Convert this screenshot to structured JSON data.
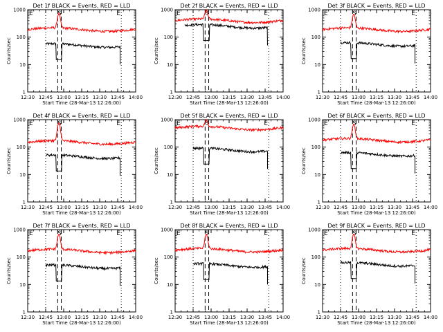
{
  "chart_data": [
    {
      "type": "line",
      "title": "Det 1f BLACK = Events, RED = LLD",
      "xlabel": "Start Time (28-Mar-13 12:26:00)",
      "ylabel": "Counts/sec",
      "xlim": [
        "12:30",
        "14:00"
      ],
      "ylim": [
        1,
        1000
      ],
      "yscale": "log",
      "x_tick_labels": [
        "12:30",
        "12:45",
        "13:00",
        "13:15",
        "13:30",
        "13:45",
        "14:00"
      ],
      "y_tick_labels": [
        "1",
        "10",
        "100",
        "1000"
      ],
      "markers": {
        "E_start": "12:45",
        "S_left": "12:55",
        "S_right": "12:58",
        "E_end": "13:48",
        "annotations": [
          "E",
          "S",
          "E"
        ]
      },
      "series": [
        {
          "name": "Events",
          "color": "#000000",
          "approx_level": 50,
          "start": "12:45",
          "end": "13:47"
        },
        {
          "name": "LLD",
          "color": "#ff0000",
          "approx_level": 190,
          "peak": "12:56",
          "peak_level": 700,
          "start": "12:30",
          "end": "14:00"
        }
      ]
    },
    {
      "type": "line",
      "title": "Det 2f BLACK = Events, RED = LLD",
      "xlabel": "Start Time (28-Mar-13 12:26:00)",
      "ylabel": "Counts/sec",
      "xlim": [
        "12:30",
        "14:00"
      ],
      "ylim": [
        1,
        1000
      ],
      "yscale": "log",
      "x_tick_labels": [
        "12:30",
        "12:45",
        "13:00",
        "13:15",
        "13:30",
        "13:45",
        "14:00"
      ],
      "y_tick_labels": [
        "1",
        "10",
        "100",
        "1000"
      ],
      "markers": {
        "E_start": "12:45",
        "S_left": "12:55",
        "S_right": "12:58",
        "E_end": "13:48",
        "annotations": [
          "E",
          "S",
          "E"
        ]
      },
      "series": [
        {
          "name": "Events",
          "color": "#000000",
          "approx_level": 250,
          "start": "12:38",
          "end": "13:47"
        },
        {
          "name": "LLD",
          "color": "#ff0000",
          "approx_level": 400,
          "peak": "12:56",
          "peak_level": 900,
          "start": "12:30",
          "end": "14:00"
        }
      ]
    },
    {
      "type": "line",
      "title": "Det 3f BLACK = Events, RED = LLD",
      "xlabel": "Start Time (28-Mar-13 12:26:00)",
      "ylabel": "Counts/sec",
      "xlim": [
        "12:30",
        "14:00"
      ],
      "ylim": [
        1,
        1000
      ],
      "yscale": "log",
      "x_tick_labels": [
        "12:30",
        "12:45",
        "13:00",
        "13:15",
        "13:30",
        "13:45",
        "14:00"
      ],
      "y_tick_labels": [
        "1",
        "10",
        "100",
        "1000"
      ],
      "markers": {
        "E_start": "12:45",
        "S_left": "12:55",
        "S_right": "12:58",
        "E_end": "13:48",
        "annotations": [
          "E",
          "S",
          "E"
        ]
      },
      "series": [
        {
          "name": "Events",
          "color": "#000000",
          "approx_level": 55,
          "start": "12:45",
          "end": "13:47"
        },
        {
          "name": "LLD",
          "color": "#ff0000",
          "approx_level": 190,
          "peak": "12:56",
          "peak_level": 650,
          "start": "12:30",
          "end": "14:00"
        }
      ]
    },
    {
      "type": "line",
      "title": "Det 4f BLACK = Events, RED = LLD",
      "xlabel": "Start Time (28-Mar-13 12:26:00)",
      "ylabel": "Counts/sec",
      "xlim": [
        "12:30",
        "14:00"
      ],
      "ylim": [
        1,
        1000
      ],
      "yscale": "log",
      "x_tick_labels": [
        "12:30",
        "12:45",
        "13:00",
        "13:15",
        "13:30",
        "13:45",
        "14:00"
      ],
      "y_tick_labels": [
        "1",
        "10",
        "100",
        "1000"
      ],
      "markers": {
        "E_start": "12:45",
        "S_left": "12:55",
        "S_right": "12:58",
        "E_end": "13:48",
        "annotations": [
          "E",
          "S",
          "E"
        ]
      },
      "series": [
        {
          "name": "Events",
          "color": "#000000",
          "approx_level": 45,
          "start": "12:45",
          "end": "13:47"
        },
        {
          "name": "LLD",
          "color": "#ff0000",
          "approx_level": 150,
          "peak": "12:56",
          "peak_level": 750,
          "start": "12:30",
          "end": "14:00"
        }
      ]
    },
    {
      "type": "line",
      "title": "Det 5f BLACK = Events, RED = LLD",
      "xlabel": "Start Time (28-Mar-13 12:26:00)",
      "ylabel": "Counts/sec",
      "xlim": [
        "12:30",
        "14:00"
      ],
      "ylim": [
        1,
        1000
      ],
      "yscale": "log",
      "x_tick_labels": [
        "12:30",
        "12:45",
        "13:00",
        "13:15",
        "13:30",
        "13:45",
        "14:00"
      ],
      "y_tick_labels": [
        "1",
        "10",
        "100",
        "1000"
      ],
      "markers": {
        "E_start": "12:45",
        "S_left": "12:55",
        "S_right": "12:58",
        "E_end": "13:48",
        "annotations": [
          "E",
          "S",
          "E"
        ]
      },
      "series": [
        {
          "name": "Events",
          "color": "#000000",
          "approx_level": 80,
          "start": "12:45",
          "end": "13:47"
        },
        {
          "name": "LLD",
          "color": "#ff0000",
          "approx_level": 500,
          "peak": "12:56",
          "peak_level": 900,
          "start": "12:30",
          "end": "14:00"
        }
      ]
    },
    {
      "type": "line",
      "title": "Det 6f BLACK = Events, RED = LLD",
      "xlabel": "Start Time (28-Mar-13 12:26:00)",
      "ylabel": "Counts/sec",
      "xlim": [
        "12:30",
        "14:00"
      ],
      "ylim": [
        1,
        1000
      ],
      "yscale": "log",
      "x_tick_labels": [
        "12:30",
        "12:45",
        "13:00",
        "13:15",
        "13:30",
        "13:45",
        "14:00"
      ],
      "y_tick_labels": [
        "1",
        "10",
        "100",
        "1000"
      ],
      "markers": {
        "E_start": "12:45",
        "S_left": "12:55",
        "S_right": "12:58",
        "E_end": "13:48",
        "annotations": [
          "E",
          "S",
          "E"
        ]
      },
      "series": [
        {
          "name": "Events",
          "color": "#000000",
          "approx_level": 55,
          "start": "12:45",
          "end": "13:47"
        },
        {
          "name": "LLD",
          "color": "#ff0000",
          "approx_level": 180,
          "peak": "12:56",
          "peak_level": 650,
          "start": "12:30",
          "end": "14:00"
        }
      ]
    },
    {
      "type": "line",
      "title": "Det 7f BLACK = Events, RED = LLD",
      "xlabel": "Start Time (28-Mar-13 12:26:00)",
      "ylabel": "Counts/sec",
      "xlim": [
        "12:30",
        "14:00"
      ],
      "ylim": [
        1,
        1000
      ],
      "yscale": "log",
      "x_tick_labels": [
        "12:30",
        "12:45",
        "13:00",
        "13:15",
        "13:30",
        "13:45",
        "14:00"
      ],
      "y_tick_labels": [
        "1",
        "10",
        "100",
        "1000"
      ],
      "markers": {
        "E_start": "12:45",
        "S_left": "12:55",
        "S_right": "12:58",
        "E_end": "13:48",
        "annotations": [
          "E",
          "S",
          "E"
        ]
      },
      "series": [
        {
          "name": "Events",
          "color": "#000000",
          "approx_level": 45,
          "start": "12:45",
          "end": "13:47"
        },
        {
          "name": "LLD",
          "color": "#ff0000",
          "approx_level": 170,
          "peak": "12:56",
          "peak_level": 650,
          "start": "12:30",
          "end": "14:00"
        }
      ]
    },
    {
      "type": "line",
      "title": "Det 8f BLACK = Events, RED = LLD",
      "xlabel": "Start Time (28-Mar-13 12:26:00)",
      "ylabel": "Counts/sec",
      "xlim": [
        "12:30",
        "14:00"
      ],
      "ylim": [
        1,
        1000
      ],
      "yscale": "log",
      "x_tick_labels": [
        "12:30",
        "12:45",
        "13:00",
        "13:15",
        "13:30",
        "13:45",
        "14:00"
      ],
      "y_tick_labels": [
        "1",
        "10",
        "100",
        "1000"
      ],
      "markers": {
        "E_start": "12:45",
        "S_left": "12:55",
        "S_right": "12:58",
        "E_end": "13:48",
        "annotations": [
          "E",
          "S",
          "E"
        ]
      },
      "series": [
        {
          "name": "Events",
          "color": "#000000",
          "approx_level": 50,
          "start": "12:45",
          "end": "13:47"
        },
        {
          "name": "LLD",
          "color": "#ff0000",
          "approx_level": 180,
          "peak": "12:56",
          "peak_level": 650,
          "start": "12:30",
          "end": "14:00"
        }
      ]
    },
    {
      "type": "line",
      "title": "Det 9f BLACK = Events, RED = LLD",
      "xlabel": "Start Time (28-Mar-13 12:26:00)",
      "ylabel": "Counts/sec",
      "xlim": [
        "12:30",
        "14:00"
      ],
      "ylim": [
        1,
        1000
      ],
      "yscale": "log",
      "x_tick_labels": [
        "12:30",
        "12:45",
        "13:00",
        "13:15",
        "13:30",
        "13:45",
        "14:00"
      ],
      "y_tick_labels": [
        "1",
        "10",
        "100",
        "1000"
      ],
      "markers": {
        "E_start": "12:45",
        "S_left": "12:55",
        "S_right": "12:58",
        "E_end": "13:48",
        "annotations": [
          "E",
          "S",
          "E"
        ]
      },
      "series": [
        {
          "name": "Events",
          "color": "#000000",
          "approx_level": 55,
          "start": "12:45",
          "end": "13:47"
        },
        {
          "name": "LLD",
          "color": "#ff0000",
          "approx_level": 180,
          "peak": "12:56",
          "peak_level": 650,
          "start": "12:30",
          "end": "14:00"
        }
      ]
    }
  ]
}
